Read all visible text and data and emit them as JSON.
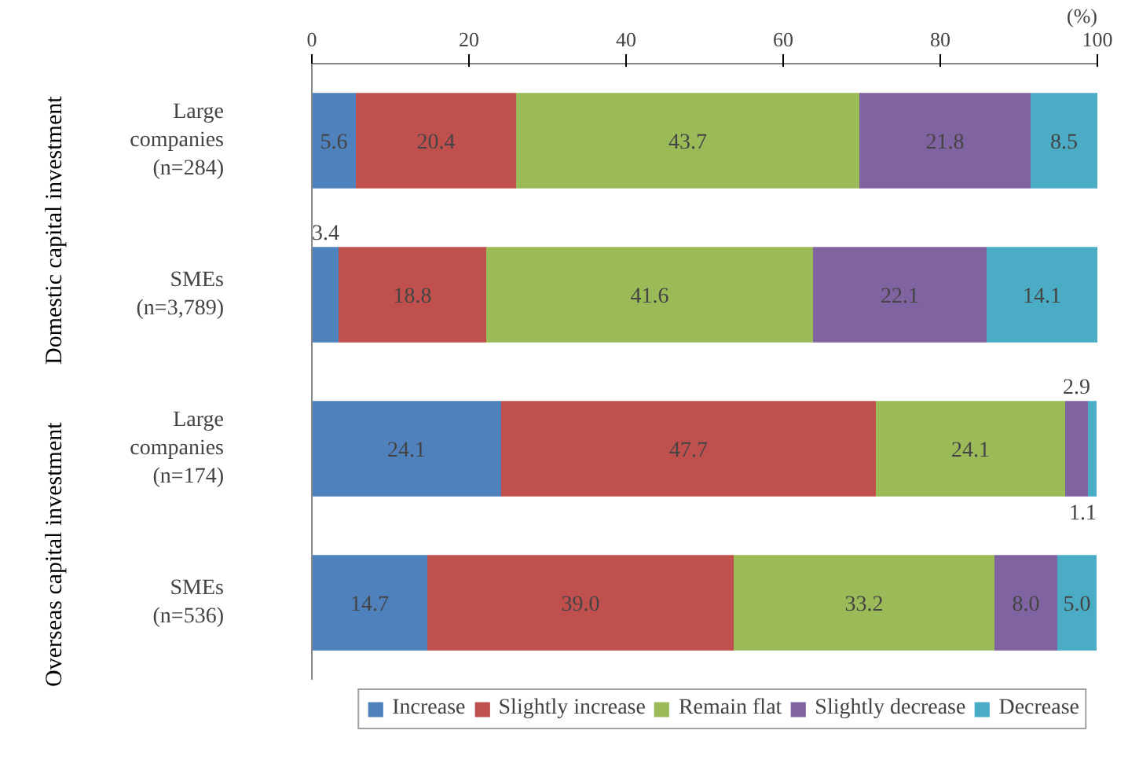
{
  "chart_data": {
    "type": "bar",
    "orientation": "horizontal",
    "stacked": true,
    "xlabel": "(%)",
    "categories": [
      "Large\ncompanies\n(n=284)",
      "SMEs\n(n=3,789)",
      "Large\ncompanies\n(n=174)",
      "SMEs\n(n=536)"
    ],
    "series": [
      {
        "name": "Increase",
        "color": "#4f81bd",
        "values": [
          5.6,
          3.4,
          24.1,
          14.7
        ],
        "value_labels": [
          "5.6",
          "3.4",
          "24.1",
          "14.7"
        ]
      },
      {
        "name": "Slightly increase",
        "color": "#c0504d",
        "values": [
          20.4,
          18.8,
          47.7,
          39.0
        ],
        "value_labels": [
          "20.4",
          "18.8",
          "47.7",
          "39.0"
        ]
      },
      {
        "name": "Remain flat",
        "color": "#9bbb59",
        "values": [
          43.7,
          41.6,
          24.1,
          33.2
        ],
        "value_labels": [
          "43.7",
          "41.6",
          "24.1",
          "33.2"
        ]
      },
      {
        "name": "Slightly decrease",
        "color": "#8064a2",
        "values": [
          21.8,
          22.1,
          2.9,
          8.0
        ],
        "value_labels": [
          "21.8",
          "22.1",
          "2.9",
          "8.0"
        ]
      },
      {
        "name": "Decrease",
        "color": "#4bacc6",
        "values": [
          8.5,
          14.1,
          1.1,
          5.0
        ],
        "value_labels": [
          "8.5",
          "14.1",
          "1.1",
          "5.0"
        ]
      }
    ],
    "xlim": [
      0,
      100
    ],
    "xticks": [
      0,
      20,
      40,
      60,
      80,
      100
    ],
    "annotations": [
      "Domestic capital investment",
      "Overseas capital investment"
    ],
    "grid": false,
    "legend": "bottom"
  }
}
